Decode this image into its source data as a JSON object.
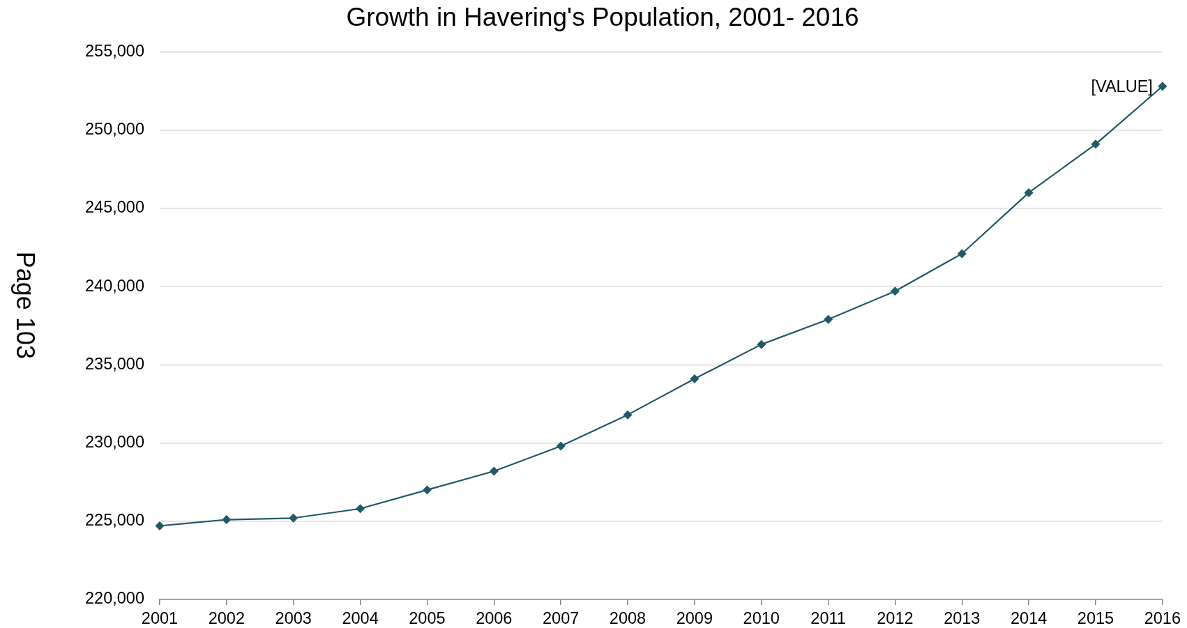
{
  "chart_data": {
    "type": "line",
    "title": "Growth in Havering's Population, 2001- 2016",
    "categories": [
      "2001",
      "2002",
      "2003",
      "2004",
      "2005",
      "2006",
      "2007",
      "2008",
      "2009",
      "2010",
      "2011",
      "2012",
      "2013",
      "2014",
      "2015",
      "2016"
    ],
    "series": [
      {
        "color": "#215968",
        "values": [
          224700,
          225100,
          225200,
          225800,
          227000,
          228200,
          229800,
          231800,
          234100,
          236300,
          237900,
          239700,
          242100,
          246000,
          249100,
          252800
        ],
        "value_labels": [
          null,
          null,
          null,
          null,
          null,
          null,
          null,
          null,
          null,
          null,
          null,
          null,
          null,
          null,
          null,
          "[VALUE]"
        ]
      }
    ],
    "ylim": [
      220000,
      255000
    ],
    "yticks": [
      {
        "value": 220000,
        "label": "220,000"
      },
      {
        "value": 225000,
        "label": "225,000"
      },
      {
        "value": 230000,
        "label": "230,000"
      },
      {
        "value": 235000,
        "label": "235,000"
      },
      {
        "value": 240000,
        "label": "240,000"
      },
      {
        "value": 245000,
        "label": "245,000"
      },
      {
        "value": 250000,
        "label": "250,000"
      },
      {
        "value": 255000,
        "label": "255,000"
      }
    ],
    "grid": "y",
    "marker": "diamond",
    "line_style": "solid",
    "annotations": [
      "Page 103"
    ]
  }
}
